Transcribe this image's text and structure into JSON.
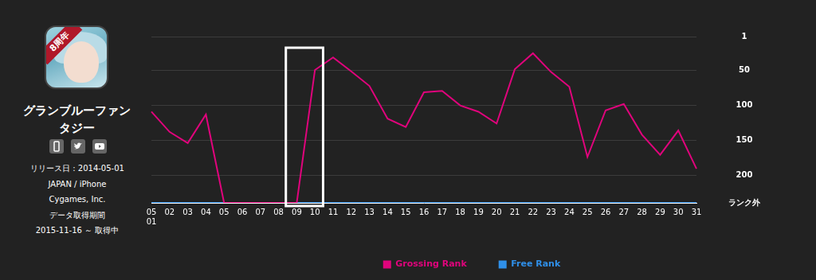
{
  "app": {
    "badge": "8周年",
    "title": "グランブルーファンタジー",
    "lines": [
      "リリース日 : 2014-05-01",
      "JAPAN / iPhone",
      "Cygames, Inc.",
      "データ取得期間",
      "2015-11-16 ～ 取得中"
    ]
  },
  "chart_data": {
    "type": "line",
    "categories": [
      "05\n01",
      "02",
      "03",
      "04",
      "05",
      "06",
      "07",
      "08",
      "09",
      "10",
      "11",
      "12",
      "13",
      "14",
      "15",
      "16",
      "17",
      "18",
      "19",
      "20",
      "21",
      "22",
      "23",
      "24",
      "25",
      "26",
      "27",
      "28",
      "29",
      "30",
      "31"
    ],
    "series": [
      {
        "name": "Grossing Rank",
        "color": "#e0047c",
        "values": [
          109,
          138,
          154,
          113,
          240,
          240,
          240,
          240,
          240,
          49,
          31,
          51,
          72,
          119,
          131,
          81,
          79,
          100,
          109,
          126,
          48,
          25,
          52,
          73,
          174,
          107,
          98,
          142,
          171,
          136,
          191
        ]
      },
      {
        "name": "Free Rank",
        "color": "#2f8fe8",
        "values": [
          240,
          240,
          240,
          240,
          240,
          240,
          240,
          240,
          240,
          240,
          240,
          240,
          240,
          240,
          240,
          240,
          240,
          240,
          240,
          240,
          240,
          240,
          240,
          240,
          240,
          240,
          240,
          240,
          240,
          240,
          240
        ]
      }
    ],
    "ylim": [
      240,
      1
    ],
    "yticks": [
      1,
      50,
      100,
      150,
      200,
      {
        "value": 240,
        "label": "ランク外"
      }
    ],
    "grid": true,
    "legend": "bottom",
    "highlight": [
      "09",
      "10"
    ]
  }
}
